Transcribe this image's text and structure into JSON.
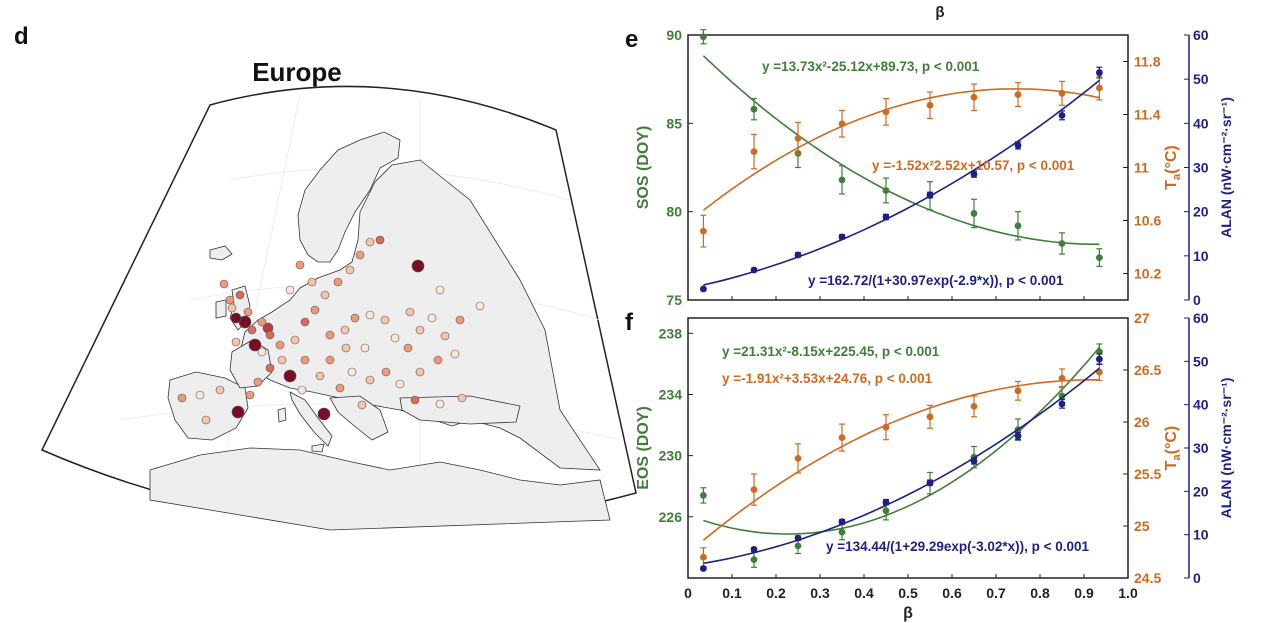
{
  "top_label": "β",
  "panel_d": {
    "letter": "d",
    "title": "Europe",
    "legend_colors": [
      "#fbe6d9",
      "#f7c4a6",
      "#f0987a",
      "#dc6a59",
      "#b73b41",
      "#7a0d26"
    ]
  },
  "colors": {
    "sos": "#3f7f3a",
    "eos": "#3f7f3a",
    "temp": "#cf6a21",
    "alan": "#1f1f86",
    "land": "#eeeeee",
    "sea": "#ffffff"
  },
  "chart_data": [
    {
      "type": "scatter",
      "panel": "e",
      "x": [
        0.035,
        0.15,
        0.25,
        0.35,
        0.45,
        0.55,
        0.65,
        0.75,
        0.85,
        0.935
      ],
      "xlim": [
        0,
        1.0
      ],
      "series": [
        {
          "name": "SOS (DOY)",
          "axis": "left",
          "values": [
            89.9,
            85.8,
            83.3,
            81.8,
            81.2,
            80.9,
            79.9,
            79.2,
            78.2,
            77.4
          ],
          "errors": [
            0.4,
            0.6,
            0.8,
            0.8,
            0.7,
            0.8,
            0.8,
            0.8,
            0.6,
            0.5
          ],
          "fit": "y=13.73x^2-25.12x+89.73"
        },
        {
          "name": "Ta (°C)",
          "axis": "right1",
          "values": [
            10.52,
            11.12,
            11.22,
            11.33,
            11.42,
            11.47,
            11.53,
            11.55,
            11.56,
            11.6
          ],
          "errors": [
            0.12,
            0.13,
            0.12,
            0.1,
            0.1,
            0.1,
            0.1,
            0.09,
            0.09,
            0.09
          ],
          "fit": "y=-1.52x^2+2.52x+10.57"
        },
        {
          "name": "ALAN (nW·cm⁻²·sr⁻¹)",
          "axis": "right2",
          "values": [
            2.5,
            6.8,
            10.2,
            14.3,
            18.8,
            23.8,
            28.5,
            35.0,
            41.8,
            51.5
          ],
          "errors": [
            0.3,
            0.4,
            0.5,
            0.5,
            0.6,
            0.6,
            0.7,
            0.8,
            1.0,
            1.2
          ],
          "fit": "y=162.72/(1+30.97exp(-2.9*x))"
        }
      ],
      "left_axis": {
        "label": "SOS (DOY)",
        "ylim": [
          75,
          90
        ],
        "ticks": [
          "75",
          "80",
          "85",
          "90"
        ]
      },
      "right_axis_1": {
        "label_main": "T",
        "label_sub": "a",
        "label_unit": "(°C)",
        "ylim": [
          10.0,
          12.0
        ],
        "ticks": [
          "10.2",
          "10.6",
          "11",
          "11.4",
          "11.8"
        ]
      },
      "right_axis_2": {
        "label": "ALAN (nW·cm⁻²·sr⁻¹)",
        "ylim": [
          0,
          60
        ],
        "ticks": [
          "0",
          "10",
          "20",
          "30",
          "40",
          "50",
          "60"
        ]
      },
      "annotations": {
        "sos": "y =13.73x²-25.12x+89.73, p < 0.001",
        "temp": "y =-1.52x²2.52x+10.57, p < 0.001",
        "alan": "y =162.72/(1+30.97exp(-2.9*x)), p < 0.001"
      }
    },
    {
      "type": "scatter",
      "panel": "f",
      "x": [
        0.035,
        0.15,
        0.25,
        0.35,
        0.45,
        0.55,
        0.65,
        0.75,
        0.85,
        0.935
      ],
      "xlim": [
        0,
        1.0
      ],
      "xlabel": "β",
      "x_ticks": [
        "0",
        "0.1",
        "0.2",
        "0.3",
        "0.4",
        "0.5",
        "0.6",
        "0.7",
        "0.8",
        "0.9",
        "1.0"
      ],
      "series": [
        {
          "name": "EOS (DOY)",
          "axis": "left",
          "values": [
            227.4,
            223.2,
            224.1,
            225.0,
            226.4,
            228.2,
            229.9,
            231.7,
            233.9,
            236.8
          ],
          "errors": [
            0.5,
            0.5,
            0.5,
            0.5,
            0.6,
            0.7,
            0.7,
            0.7,
            0.6,
            0.5
          ],
          "fit": "y=21.31x^2-8.15x+225.45"
        },
        {
          "name": "Ta (°C)",
          "axis": "right1",
          "values": [
            24.7,
            25.35,
            25.65,
            25.85,
            25.95,
            26.05,
            26.15,
            26.3,
            26.42,
            26.48
          ],
          "errors": [
            0.09,
            0.15,
            0.14,
            0.13,
            0.12,
            0.11,
            0.1,
            0.09,
            0.09,
            0.08
          ],
          "fit": "y=-1.91x^2+3.53x+24.76"
        },
        {
          "name": "ALAN (nW·cm⁻²·sr⁻¹)",
          "axis": "right2",
          "values": [
            2.2,
            6.6,
            9.2,
            13.0,
            17.5,
            22.0,
            27.0,
            32.8,
            40.2,
            50.5
          ],
          "errors": [
            0.3,
            0.4,
            0.5,
            0.5,
            0.6,
            0.6,
            0.7,
            0.8,
            1.0,
            1.2
          ],
          "fit": "y=134.44/(1+29.29exp(-3.02*x))"
        }
      ],
      "left_axis": {
        "label": "EOS (DOY)",
        "ylim": [
          222,
          239
        ],
        "ticks": [
          "226",
          "230",
          "234",
          "238"
        ]
      },
      "right_axis_1": {
        "label_main": "T",
        "label_sub": "a",
        "label_unit": "(°C)",
        "ylim": [
          24.5,
          27.0
        ],
        "ticks": [
          "24.5",
          "25",
          "25.5",
          "26",
          "26.5",
          "27"
        ]
      },
      "right_axis_2": {
        "label": "ALAN (nW·cm⁻²·sr⁻¹)",
        "ylim": [
          0,
          60
        ],
        "ticks": [
          "0",
          "10",
          "20",
          "30",
          "40",
          "50",
          "60"
        ]
      },
      "annotations": {
        "sos": "y =21.31x²-8.15x+225.45, p < 0.001",
        "temp": "y =-1.91x²+3.53x+24.76, p < 0.001",
        "alan": "y =134.44/(1+29.29exp(-3.02*x)), p < 0.001"
      }
    }
  ]
}
